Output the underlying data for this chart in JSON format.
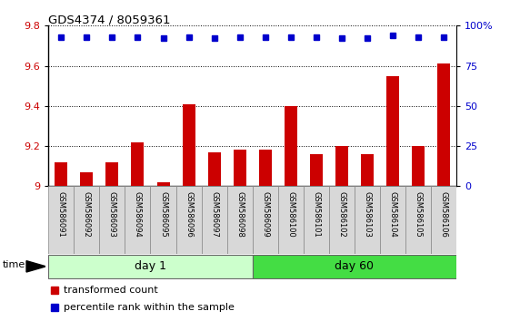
{
  "title": "GDS4374 / 8059361",
  "samples": [
    "GSM586091",
    "GSM586092",
    "GSM586093",
    "GSM586094",
    "GSM586095",
    "GSM586096",
    "GSM586097",
    "GSM586098",
    "GSM586099",
    "GSM586100",
    "GSM586101",
    "GSM586102",
    "GSM586103",
    "GSM586104",
    "GSM586105",
    "GSM586106"
  ],
  "bar_values": [
    9.12,
    9.07,
    9.12,
    9.22,
    9.02,
    9.41,
    9.17,
    9.18,
    9.18,
    9.4,
    9.16,
    9.2,
    9.16,
    9.55,
    9.2,
    9.61
  ],
  "percentile_values": [
    93,
    93,
    93,
    93,
    92,
    93,
    92,
    93,
    93,
    93,
    93,
    92,
    92,
    94,
    93,
    93
  ],
  "bar_color": "#cc0000",
  "percentile_color": "#0000cc",
  "ylim_left": [
    9.0,
    9.8
  ],
  "ylim_right": [
    0,
    100
  ],
  "yticks_left": [
    9.0,
    9.2,
    9.4,
    9.6,
    9.8
  ],
  "ytick_labels_left": [
    "9",
    "9.2",
    "9.4",
    "9.6",
    "9.8"
  ],
  "yticks_right": [
    0,
    25,
    50,
    75,
    100
  ],
  "ytick_labels_right": [
    "0",
    "25",
    "50",
    "75",
    "100%"
  ],
  "groups": [
    {
      "label": "day 1",
      "start": 0,
      "end": 8,
      "color": "#ccffcc"
    },
    {
      "label": "day 60",
      "start": 8,
      "end": 16,
      "color": "#44dd44"
    }
  ],
  "bar_width": 0.5,
  "legend_items": [
    {
      "label": "transformed count",
      "color": "#cc0000"
    },
    {
      "label": "percentile rank within the sample",
      "color": "#0000cc"
    }
  ],
  "n_samples": 16
}
